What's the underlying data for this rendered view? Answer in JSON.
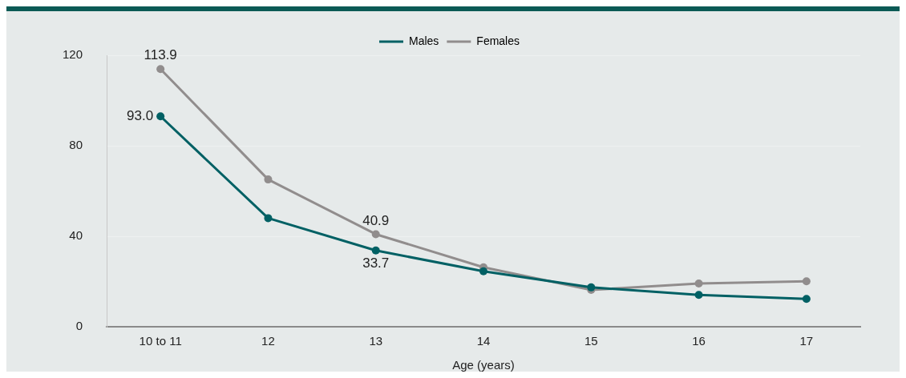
{
  "chart_data": {
    "type": "line",
    "xlabel": "Age (years)",
    "categories": [
      "10 to 11",
      "12",
      "13",
      "14",
      "15",
      "16",
      "17"
    ],
    "series": [
      {
        "name": "Males",
        "color": "#006064",
        "values": [
          93.0,
          48.0,
          33.7,
          24.5,
          17.4,
          14.1,
          12.3
        ],
        "value_labels": [
          "93.0",
          null,
          "33.7",
          null,
          null,
          null,
          null
        ]
      },
      {
        "name": "Females",
        "color": "#918d8d",
        "values": [
          113.9,
          65.1,
          40.9,
          26.3,
          16.3,
          19.1,
          20.1
        ],
        "value_labels": [
          "113.9",
          null,
          "40.9",
          null,
          null,
          null,
          null
        ]
      }
    ],
    "ylim": [
      0,
      120
    ],
    "yticks": [
      0,
      40,
      80,
      120
    ],
    "grid": "y",
    "legend": "top",
    "marker": "circle",
    "line_style": "solid"
  }
}
